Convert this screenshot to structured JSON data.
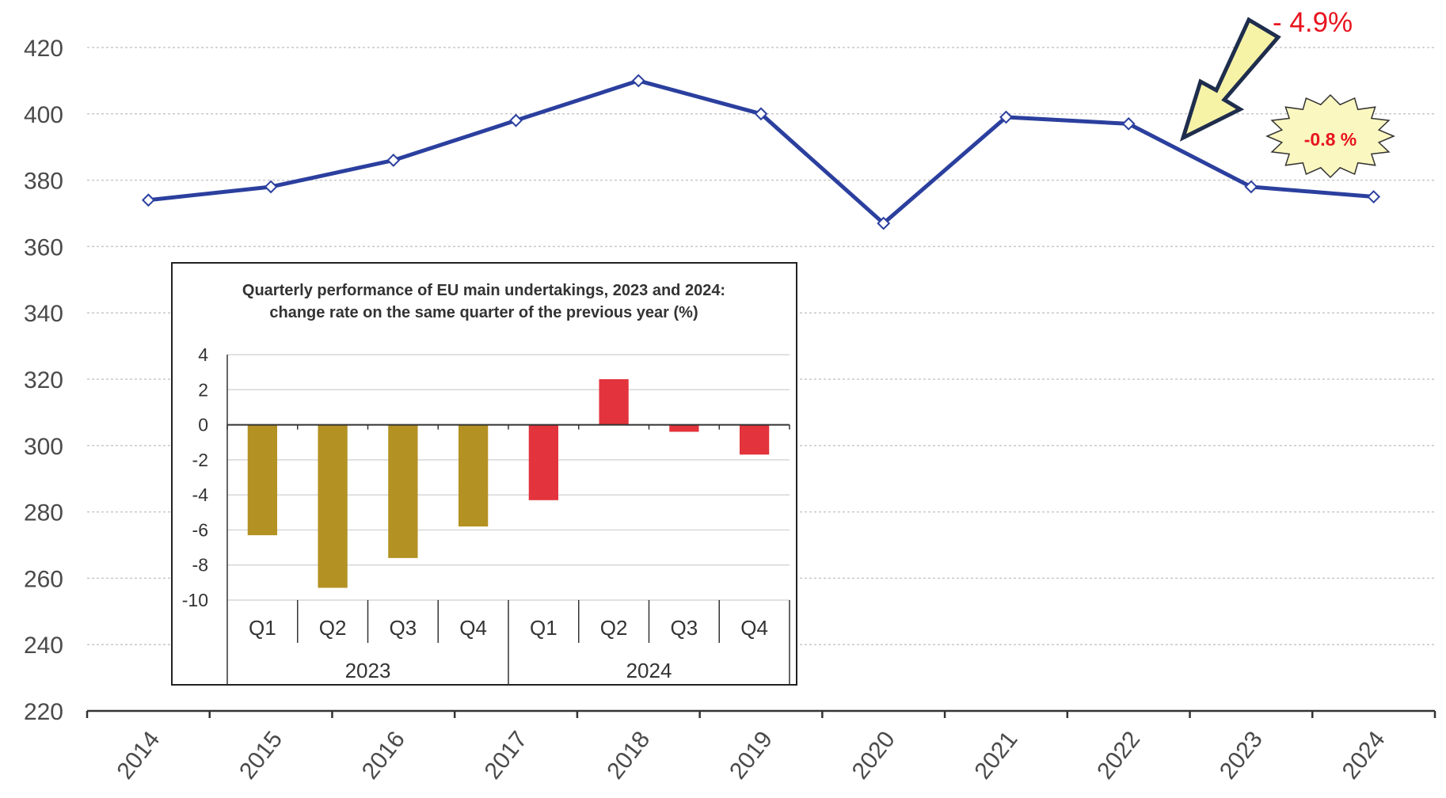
{
  "chart_data": [
    {
      "type": "line",
      "title": "",
      "xlabel": "",
      "ylabel": "",
      "x": [
        "2014",
        "2015",
        "2016",
        "2017",
        "2018",
        "2019",
        "2020",
        "2021",
        "2022",
        "2023",
        "2024"
      ],
      "series": [
        {
          "values": [
            374,
            378,
            386,
            398,
            410,
            400,
            367,
            399,
            397,
            378,
            375
          ]
        }
      ],
      "y_ticks": [
        220,
        240,
        260,
        280,
        300,
        320,
        340,
        360,
        380,
        400,
        420
      ],
      "ylim": [
        220,
        420
      ],
      "grid": "horizontal dotted",
      "line_color": "#2b3f9e",
      "marker": "diamond",
      "annotations": [
        {
          "text": "- 4.9%",
          "color": "#e8141e",
          "style": "arrow callout pointing to 2022–2023 segment",
          "arrow_color": "#f7f3a6"
        },
        {
          "text": "-0.8 %",
          "color": "#e8141e",
          "style": "starburst badge near 2023–2024",
          "badge_color": "#fbf7c0"
        }
      ]
    },
    {
      "type": "bar",
      "title": "Quarterly performance of EU  main undertakings, 2023 and  2024:",
      "subtitle": "change rate on the same quarter of the previous year (%)",
      "categories": [
        "Q1",
        "Q2",
        "Q3",
        "Q4",
        "Q1",
        "Q2",
        "Q3",
        "Q4"
      ],
      "groups": [
        {
          "label": "2023",
          "count": 4,
          "color": "#b39123"
        },
        {
          "label": "2024",
          "count": 4,
          "color": "#e3333c"
        }
      ],
      "values": [
        -6.3,
        -9.3,
        -7.6,
        -5.8,
        -4.3,
        2.6,
        -0.4,
        -1.7
      ],
      "y_ticks": [
        4,
        2,
        0,
        -2,
        -4,
        -6,
        -8,
        -10
      ],
      "ylim": [
        -10,
        4
      ],
      "grid": "horizontal"
    }
  ]
}
